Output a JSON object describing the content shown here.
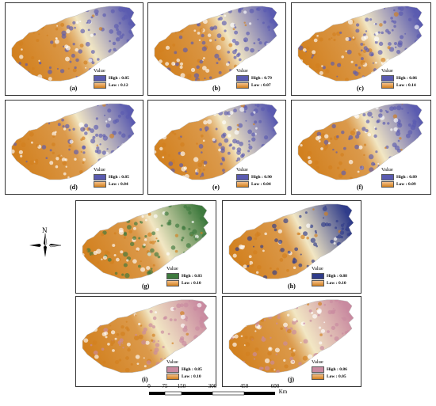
{
  "panels": [
    {
      "id": "a",
      "label": "(a)",
      "legend_title": "Value",
      "high": "High : 0.85",
      "low": "Low : 0.12",
      "scheme": "blue"
    },
    {
      "id": "b",
      "label": "(b)",
      "legend_title": "Value",
      "high": "High : 0.79",
      "low": "Low : 0.07",
      "scheme": "blue"
    },
    {
      "id": "c",
      "label": "(c)",
      "legend_title": "Value",
      "high": "High : 0.86",
      "low": "Low : 0.14",
      "scheme": "blue"
    },
    {
      "id": "d",
      "label": "(d)",
      "legend_title": "Value",
      "high": "High : 0.85",
      "low": "Low : 0.04",
      "scheme": "blue"
    },
    {
      "id": "e",
      "label": "(e)",
      "legend_title": "Value",
      "high": "High : 0.90",
      "low": "Low : 0.04",
      "scheme": "blue"
    },
    {
      "id": "f",
      "label": "(f)",
      "legend_title": "Value",
      "high": "High : 0.89",
      "low": "Low : 0.09",
      "scheme": "blue"
    },
    {
      "id": "g",
      "label": "(g)",
      "legend_title": "Value",
      "high": "High : 0.83",
      "low": "Low : 0.10",
      "scheme": "green"
    },
    {
      "id": "h",
      "label": "(h)",
      "legend_title": "Value",
      "high": "High : 0.88",
      "low": "Low : 0.10",
      "scheme": "navy"
    },
    {
      "id": "i",
      "label": "(i)",
      "legend_title": "Value",
      "high": "High : 0.85",
      "low": "Low : 0.10",
      "scheme": "pink"
    },
    {
      "id": "j",
      "label": "(j)",
      "legend_title": "Value",
      "high": "High : 0.86",
      "low": "Low : 0.05",
      "scheme": "pink"
    }
  ],
  "north_label": "N",
  "scale": {
    "ticks": [
      "0",
      "75",
      "150",
      "300",
      "450",
      "600"
    ],
    "unit": "Km"
  },
  "colors": {
    "low_orange": "#d2801e",
    "mid_cream": "#f2e7c4",
    "high_blue": "#5a5bb0",
    "high_green": "#3e7a3e",
    "high_navy": "#2f3c8a",
    "high_pink": "#c98aa0"
  }
}
